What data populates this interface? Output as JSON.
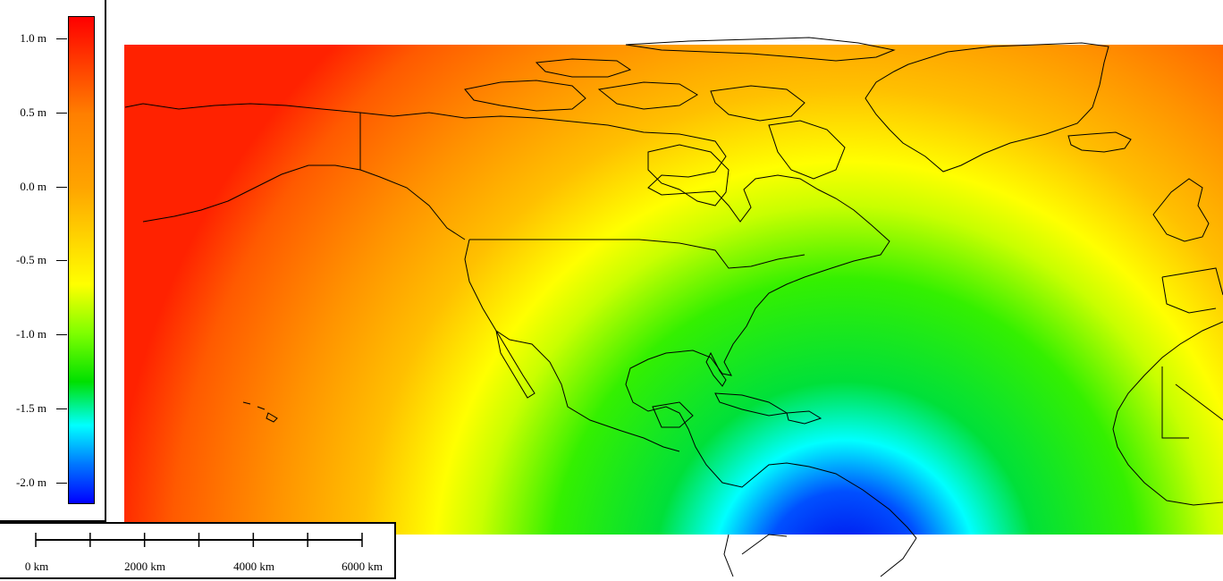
{
  "legend": {
    "ticks": [
      {
        "label": "1.0 m"
      },
      {
        "label": "0.5 m"
      },
      {
        "label": "0.0 m"
      },
      {
        "label": "-0.5 m"
      },
      {
        "label": "-1.0 m"
      },
      {
        "label": "-1.5 m"
      },
      {
        "label": "-2.0 m"
      }
    ],
    "range": [
      -2.2,
      1.15
    ],
    "colors": [
      "#ff0000",
      "#ff7f00",
      "#ffa400",
      "#ffff00",
      "#7fff00",
      "#00e000",
      "#00ffff",
      "#0077ff",
      "#0000ff"
    ]
  },
  "scale_bar": {
    "labels": {
      "zero": "0 km",
      "l2000": "2000 km",
      "l4000": "4000 km",
      "l6000": "6000 km"
    },
    "max_km": 6000,
    "divisions": 6
  }
}
